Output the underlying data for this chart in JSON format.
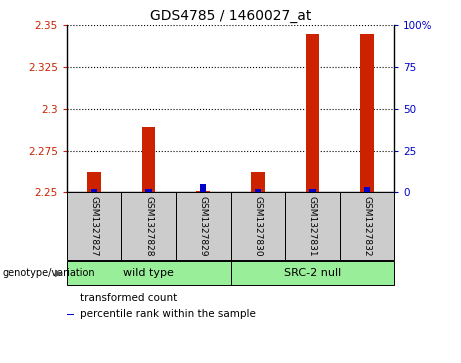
{
  "title": "GDS4785 / 1460027_at",
  "samples": [
    "GSM1327827",
    "GSM1327828",
    "GSM1327829",
    "GSM1327830",
    "GSM1327831",
    "GSM1327832"
  ],
  "red_values": [
    2.262,
    2.289,
    2.251,
    2.262,
    2.345,
    2.345
  ],
  "blue_pcts": [
    2.0,
    2.0,
    5.0,
    2.0,
    2.0,
    3.0
  ],
  "ymin": 2.25,
  "ymax": 2.35,
  "yticks": [
    2.25,
    2.275,
    2.3,
    2.325,
    2.35
  ],
  "right_yticks": [
    0,
    25,
    50,
    75,
    100
  ],
  "right_yticklabels": [
    "0",
    "25",
    "50",
    "75",
    "100%"
  ],
  "baseline": 2.25,
  "group_boundaries": [
    [
      0,
      2,
      "wild type"
    ],
    [
      3,
      5,
      "SRC-2 null"
    ]
  ],
  "group_label": "genotype/variation",
  "legend_items": [
    {
      "label": "transformed count",
      "color": "#CC2200"
    },
    {
      "label": "percentile rank within the sample",
      "color": "#0000CC"
    }
  ],
  "red_color": "#CC2200",
  "blue_color": "#0000CC",
  "red_bar_width": 0.25,
  "blue_bar_width": 0.12,
  "title_fontsize": 10,
  "tick_fontsize": 7.5,
  "sample_fontsize": 6.5,
  "group_fontsize": 8,
  "legend_fontsize": 7.5,
  "gray_color": "#CCCCCC",
  "green_color": "#99EE99"
}
